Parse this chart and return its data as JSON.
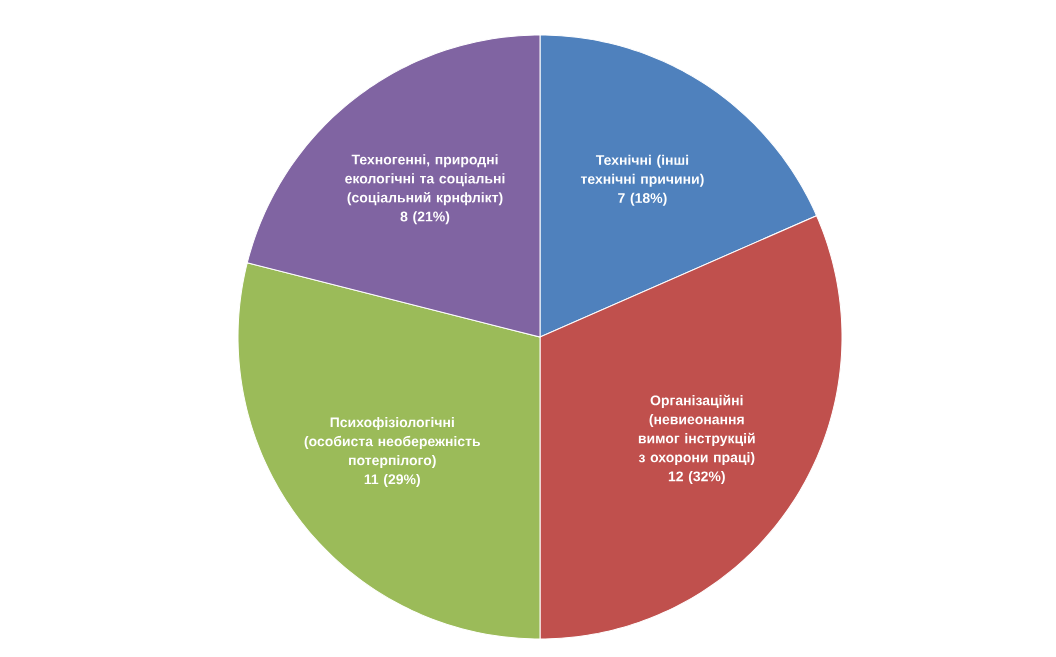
{
  "chart_data": {
    "type": "pie",
    "categories": [
      "Технічні (інші технічні причини)",
      "Організаційні (невиеонання вимог інструкцій з охорони праці)",
      "Психофізіологічні (особиста необережність потерпілого)",
      "Техногенні, природні екологічні та соціальні (соціальний крнфлікт)"
    ],
    "values": [
      7,
      12,
      11,
      8
    ],
    "value_labels": [
      "7 (18%)",
      "12 (32%)",
      "11 (29%)",
      "8 (21%)"
    ],
    "colors": [
      "#4f81bd",
      "#c0504d",
      "#9bbb59",
      "#8064a2"
    ]
  }
}
